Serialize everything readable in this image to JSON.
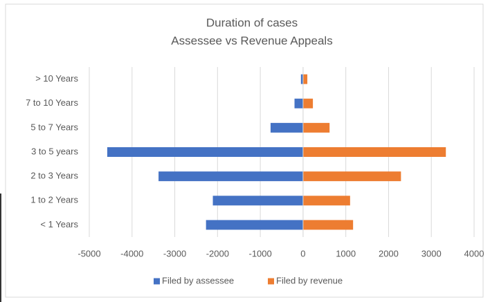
{
  "chart_data": {
    "type": "bar",
    "orientation": "horizontal",
    "title": "Duration of cases",
    "subtitle": "Assessee vs Revenue Appeals",
    "categories": [
      "< 1 Years",
      "1 to 2 Years",
      "2 to 3 Years",
      "3 to 5 years",
      "5 to 7 Years",
      "7 to 10 Years",
      "> 10 Years"
    ],
    "series": [
      {
        "name": "Filed by assessee",
        "color": "#4472c4",
        "values": [
          -2270,
          -2110,
          -3380,
          -4580,
          -760,
          -200,
          -50
        ]
      },
      {
        "name": "Filed by revenue",
        "color": "#ed7d31",
        "values": [
          1170,
          1100,
          2290,
          3340,
          620,
          230,
          100
        ]
      }
    ],
    "xlim": [
      -5000,
      4000
    ],
    "xticks": [
      -5000,
      -4000,
      -3000,
      -2000,
      -1000,
      0,
      1000,
      2000,
      3000,
      4000
    ],
    "grid": true,
    "legend": "bottom"
  }
}
